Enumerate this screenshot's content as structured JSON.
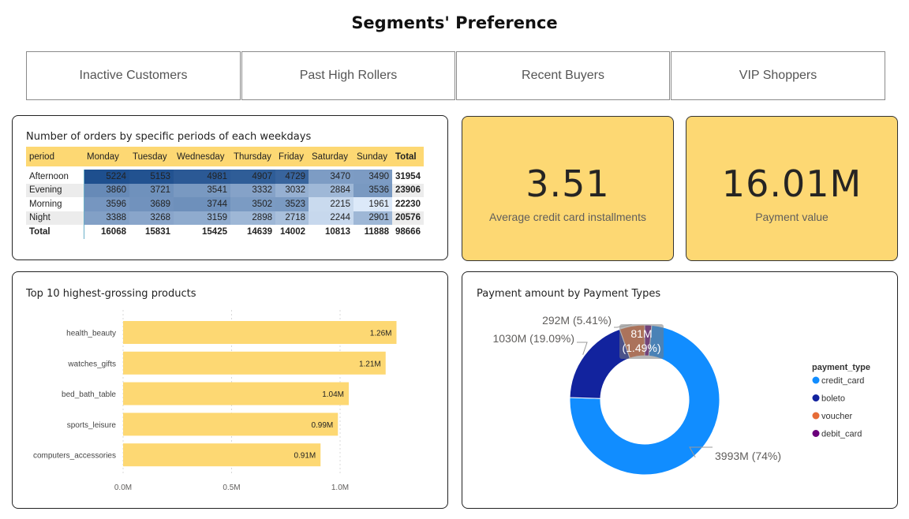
{
  "page": {
    "title": "Segments' Preference"
  },
  "segments": [
    {
      "label": "Inactive Customers"
    },
    {
      "label": "Past High Rollers"
    },
    {
      "label": "Recent Buyers"
    },
    {
      "label": "VIP Shoppers"
    }
  ],
  "colors": {
    "accent": "#fdd873",
    "heat_low": "#dbe8f8",
    "heat_high": "#1e4f8e"
  },
  "matrix": {
    "title": "Number of orders by specific periods of each weekdays",
    "headers": [
      "period",
      "Monday",
      "Tuesday",
      "Wednesday",
      "Thursday",
      "Friday",
      "Saturday",
      "Sunday",
      "Total"
    ],
    "rows": [
      {
        "label": "Afternoon",
        "values": [
          "5224",
          "5153",
          "4981",
          "4907",
          "4729",
          "3470",
          "3490"
        ],
        "total": "31954"
      },
      {
        "label": "Evening",
        "values": [
          "3860",
          "3721",
          "3541",
          "3332",
          "3032",
          "2884",
          "3536"
        ],
        "total": "23906"
      },
      {
        "label": "Morning",
        "values": [
          "3596",
          "3689",
          "3744",
          "3502",
          "3523",
          "2215",
          "1961"
        ],
        "total": "22230"
      },
      {
        "label": "Night",
        "values": [
          "3388",
          "3268",
          "3159",
          "2898",
          "2718",
          "2244",
          "2901"
        ],
        "total": "20576"
      }
    ],
    "total_row": {
      "label": "Total",
      "values": [
        "16068",
        "15831",
        "15425",
        "14639",
        "14002",
        "10813",
        "11888"
      ],
      "total": "98666"
    }
  },
  "kpis": [
    {
      "value": "3.51",
      "label": "Average credit card installments"
    },
    {
      "value": "16.01M",
      "label": "Payment value"
    }
  ],
  "chart_data": [
    {
      "type": "bar",
      "orientation": "horizontal",
      "title": "Top 10 highest-grossing products",
      "categories": [
        "health_beauty",
        "watches_gifts",
        "bed_bath_table",
        "sports_leisure",
        "computers_accessories"
      ],
      "values": [
        1.26,
        1.21,
        1.04,
        0.99,
        0.91
      ],
      "data_labels": [
        "1.26M",
        "1.21M",
        "1.04M",
        "0.99M",
        "0.91M"
      ],
      "unit": "M",
      "xlim": [
        0,
        1.4
      ],
      "xticks": [
        "0.0M",
        "0.5M",
        "1.0M"
      ],
      "xtick_values": [
        0,
        0.5,
        1.0
      ],
      "grid": true,
      "color": "#fdd873"
    },
    {
      "type": "pie",
      "variant": "donut",
      "title": "Payment amount by Payment Types",
      "legend_title": "payment_type",
      "legend_position": "right",
      "slices": [
        {
          "name": "credit_card",
          "value": 3993,
          "label": "3993M (74%)",
          "color": "#118dff"
        },
        {
          "name": "boleto",
          "value": 1030,
          "label": "1030M (19.09%)",
          "color": "#12239e"
        },
        {
          "name": "voucher",
          "value": 292,
          "label": "292M (5.41%)",
          "color": "#e66c37"
        },
        {
          "name": "debit_card",
          "value": 81,
          "label": "81M (1.49%)",
          "color": "#6b007b"
        }
      ]
    }
  ]
}
